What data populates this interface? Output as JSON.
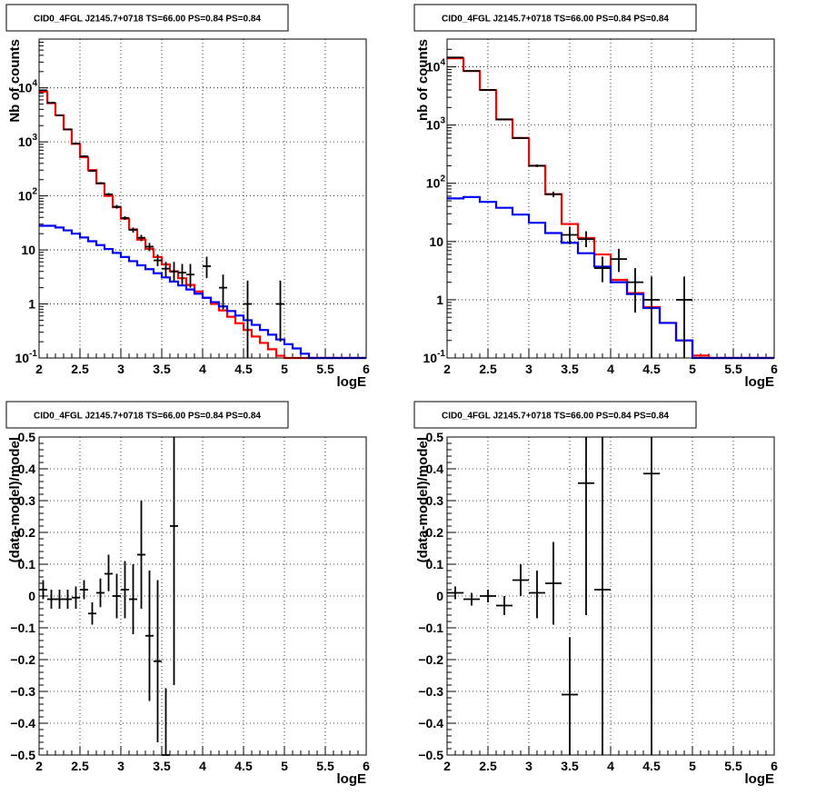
{
  "colors": {
    "model_total": "#ff0000",
    "model_bkg": "#0000ff",
    "data": "#000000"
  },
  "chart_data": [
    {
      "id": "top-left",
      "type": "line",
      "title": "CID0_4FGL J2145.7+0718 TS=66.00 PS=0.84 PS=0.84",
      "xlabel": "logE",
      "ylabel": "Nb of counts",
      "xlim": [
        2,
        6
      ],
      "ylim": [
        0.1,
        80000
      ],
      "yscale": "log",
      "grid": true,
      "xticks": [
        "2",
        "2.5",
        "3",
        "3.5",
        "4",
        "4.5",
        "5",
        "5.5",
        "6"
      ],
      "yticks": [
        {
          "v": 0.1,
          "label": "10",
          "sup": "-1"
        },
        {
          "v": 1,
          "label": "1",
          "sup": ""
        },
        {
          "v": 10,
          "label": "10",
          "sup": ""
        },
        {
          "v": 100,
          "label": "10",
          "sup": "2"
        },
        {
          "v": 1000,
          "label": "10",
          "sup": "3"
        },
        {
          "v": 10000,
          "label": "10",
          "sup": "4"
        }
      ],
      "hist_edges": [
        2.0,
        2.1,
        2.2,
        2.3,
        2.4,
        2.5,
        2.6,
        2.7,
        2.8,
        2.9,
        3.0,
        3.1,
        3.2,
        3.3,
        3.4,
        3.5,
        3.6,
        3.7,
        3.8,
        3.9,
        4.0,
        4.1,
        4.2,
        4.3,
        4.4,
        4.5,
        4.6,
        4.7,
        4.8,
        4.9,
        5.0,
        5.1,
        5.2,
        5.3,
        5.4,
        5.5,
        5.6,
        5.7,
        5.8,
        5.9,
        6.0
      ],
      "series": [
        {
          "kind": "hist",
          "color": "model_total",
          "values": [
            8500,
            5200,
            3100,
            1700,
            920,
            520,
            300,
            170,
            100,
            62,
            38,
            24,
            15.5,
            10.5,
            7.4,
            5.4,
            4.0,
            3.0,
            2.25,
            1.7,
            1.3,
            1.0,
            0.76,
            0.58,
            0.44,
            0.33,
            0.25,
            0.19,
            0.145,
            0.11,
            0.1,
            0.1,
            0.1,
            0.1,
            0.1,
            0.1,
            0.1,
            0.1,
            0.1,
            0.1
          ]
        },
        {
          "kind": "hist",
          "color": "model_bkg",
          "values": [
            28,
            28,
            26,
            23,
            20,
            17,
            14.5,
            12.3,
            10.4,
            8.8,
            7.4,
            6.2,
            5.2,
            4.4,
            3.7,
            3.1,
            2.6,
            2.2,
            1.85,
            1.55,
            1.3,
            1.08,
            0.9,
            0.74,
            0.61,
            0.5,
            0.41,
            0.33,
            0.27,
            0.22,
            0.18,
            0.15,
            0.12,
            0.1,
            0.1,
            0.1,
            0.1,
            0.1,
            0.1,
            0.1
          ]
        },
        {
          "kind": "points",
          "color": "data",
          "x": [
            2.05,
            2.15,
            2.25,
            2.35,
            2.45,
            2.55,
            2.65,
            2.75,
            2.85,
            2.95,
            3.05,
            3.15,
            3.25,
            3.35,
            3.45,
            3.55,
            3.65,
            3.75,
            3.85,
            4.05,
            4.25,
            4.55,
            4.95
          ],
          "xerr": 0.05,
          "y": [
            9000,
            5300,
            3100,
            1700,
            930,
            540,
            290,
            172,
            107,
            63,
            39,
            23.5,
            16.8,
            11.5,
            6.4,
            4.5,
            4.0,
            3.8,
            3.5,
            5.0,
            2.0,
            1.0,
            1.0
          ],
          "ylo": [
            8900,
            5200,
            3000,
            1650,
            900,
            520,
            280,
            165,
            100,
            58,
            36,
            21,
            14.5,
            9.5,
            5.0,
            3.2,
            2.5,
            2.3,
            2.0,
            3.0,
            0.8,
            0.07,
            0.2
          ],
          "yhi": [
            9100,
            5400,
            3200,
            1750,
            960,
            560,
            300,
            180,
            113,
            68,
            42,
            26,
            19,
            13.5,
            8.2,
            6.0,
            6.0,
            5.5,
            5.5,
            7.5,
            3.5,
            2.7,
            2.7
          ]
        }
      ]
    },
    {
      "id": "top-right",
      "type": "line",
      "title": "CID0_4FGL J2145.7+0718 TS=66.00 PS=0.84 PS=0.84",
      "xlabel": "logE",
      "ylabel": "nb of counts",
      "xlim": [
        2,
        6
      ],
      "ylim": [
        0.1,
        30000
      ],
      "yscale": "log",
      "grid": true,
      "xticks": [
        "2",
        "2.5",
        "3",
        "3.5",
        "4",
        "4.5",
        "5",
        "5.5",
        "6"
      ],
      "yticks": [
        {
          "v": 0.1,
          "label": "10",
          "sup": "-1"
        },
        {
          "v": 1,
          "label": "1",
          "sup": ""
        },
        {
          "v": 10,
          "label": "10",
          "sup": ""
        },
        {
          "v": 100,
          "label": "10",
          "sup": "2"
        },
        {
          "v": 1000,
          "label": "10",
          "sup": "3"
        },
        {
          "v": 10000,
          "label": "10",
          "sup": "4"
        }
      ],
      "hist_edges": [
        2.0,
        2.2,
        2.4,
        2.6,
        2.8,
        3.0,
        3.2,
        3.4,
        3.6,
        3.8,
        4.0,
        4.2,
        4.4,
        4.6,
        4.8,
        5.0,
        5.2,
        5.4,
        5.6,
        5.8,
        6.0
      ],
      "series": [
        {
          "kind": "hist",
          "color": "model_total",
          "values": [
            14000,
            8500,
            4000,
            1250,
            600,
            200,
            65,
            20,
            11.5,
            6.0,
            2.2,
            1.3,
            0.75,
            0.4,
            0.2,
            0.11,
            0.1,
            0.1,
            0.1,
            0.1
          ]
        },
        {
          "kind": "hist",
          "color": "model_bkg",
          "values": [
            55,
            58,
            48,
            38,
            29,
            21,
            14,
            9.5,
            6.3,
            3.7,
            2.0,
            1.25,
            0.72,
            0.4,
            0.2,
            0.1,
            0.1,
            0.1,
            0.1,
            0.1
          ]
        },
        {
          "kind": "points",
          "color": "data",
          "x": [
            2.1,
            2.3,
            2.5,
            2.7,
            2.9,
            3.1,
            3.3,
            3.5,
            3.7,
            3.9,
            4.1,
            4.3,
            4.5,
            4.9
          ],
          "xerr": 0.1,
          "y": [
            14500,
            8500,
            4000,
            1250,
            600,
            200,
            65,
            13,
            11,
            3.5,
            5.0,
            2.0,
            1.0,
            1.0
          ],
          "ylo": [
            14300,
            8400,
            3900,
            1220,
            580,
            190,
            58,
            9,
            8,
            2.0,
            3.0,
            0.6,
            0.1,
            0.1
          ],
          "yhi": [
            14700,
            8600,
            4100,
            1280,
            620,
            210,
            72,
            18,
            15,
            5.5,
            7.5,
            3.5,
            2.5,
            2.5
          ]
        }
      ]
    },
    {
      "id": "bottom-left",
      "type": "scatter",
      "title": "CID0_4FGL J2145.7+0718 TS=66.00 PS=0.84 PS=0.84",
      "xlabel": "logE",
      "ylabel": "(data-model)/model",
      "xlim": [
        2,
        6
      ],
      "ylim": [
        -0.5,
        0.5
      ],
      "yscale": "linear",
      "grid": true,
      "xticks": [
        "2",
        "2.5",
        "3",
        "3.5",
        "4",
        "4.5",
        "5",
        "5.5",
        "6"
      ],
      "yticks": [
        {
          "v": -0.5,
          "label": "−0.5",
          "sup": ""
        },
        {
          "v": -0.4,
          "label": "−0.4",
          "sup": ""
        },
        {
          "v": -0.3,
          "label": "−0.3",
          "sup": ""
        },
        {
          "v": -0.2,
          "label": "−0.2",
          "sup": ""
        },
        {
          "v": -0.1,
          "label": "−0.1",
          "sup": ""
        },
        {
          "v": 0,
          "label": "0",
          "sup": ""
        },
        {
          "v": 0.1,
          "label": "0.1",
          "sup": ""
        },
        {
          "v": 0.2,
          "label": "0.2",
          "sup": ""
        },
        {
          "v": 0.3,
          "label": "0.3",
          "sup": ""
        },
        {
          "v": 0.4,
          "label": "0.4",
          "sup": ""
        },
        {
          "v": 0.5,
          "label": "0.5",
          "sup": ""
        }
      ],
      "series": [
        {
          "kind": "points",
          "color": "data",
          "x": [
            2.05,
            2.15,
            2.25,
            2.35,
            2.45,
            2.55,
            2.65,
            2.75,
            2.85,
            2.95,
            3.05,
            3.15,
            3.25,
            3.35,
            3.45,
            3.55,
            3.65
          ],
          "xerr": 0.05,
          "y": [
            0.02,
            -0.01,
            -0.01,
            -0.01,
            -0.005,
            0.02,
            -0.055,
            0.01,
            0.07,
            0.0,
            0.02,
            -0.01,
            0.13,
            -0.125,
            -0.205,
            -0.5,
            0.22
          ],
          "ylo": [
            -0.01,
            -0.04,
            -0.04,
            -0.04,
            -0.04,
            -0.01,
            -0.09,
            -0.035,
            0.015,
            -0.07,
            -0.07,
            -0.12,
            -0.04,
            -0.33,
            -0.46,
            -0.5,
            -0.28
          ],
          "yhi": [
            0.05,
            0.02,
            0.02,
            0.02,
            0.03,
            0.05,
            -0.02,
            0.055,
            0.13,
            0.07,
            0.11,
            0.1,
            0.3,
            0.08,
            0.05,
            -0.29,
            0.5
          ]
        }
      ]
    },
    {
      "id": "bottom-right",
      "type": "scatter",
      "title": "CID0_4FGL J2145.7+0718 TS=66.00 PS=0.84 PS=0.84",
      "xlabel": "logE",
      "ylabel": "(data-model)/model",
      "xlim": [
        2,
        6
      ],
      "ylim": [
        -0.5,
        0.5
      ],
      "yscale": "linear",
      "grid": true,
      "xticks": [
        "2",
        "2.5",
        "3",
        "3.5",
        "4",
        "4.5",
        "5",
        "5.5",
        "6"
      ],
      "yticks": [
        {
          "v": -0.5,
          "label": "−0.5",
          "sup": ""
        },
        {
          "v": -0.4,
          "label": "−0.4",
          "sup": ""
        },
        {
          "v": -0.3,
          "label": "−0.3",
          "sup": ""
        },
        {
          "v": -0.2,
          "label": "−0.2",
          "sup": ""
        },
        {
          "v": -0.1,
          "label": "−0.1",
          "sup": ""
        },
        {
          "v": 0,
          "label": "0",
          "sup": ""
        },
        {
          "v": 0.1,
          "label": "0.1",
          "sup": ""
        },
        {
          "v": 0.2,
          "label": "0.2",
          "sup": ""
        },
        {
          "v": 0.3,
          "label": "0.3",
          "sup": ""
        },
        {
          "v": 0.4,
          "label": "0.4",
          "sup": ""
        },
        {
          "v": 0.5,
          "label": "0.5",
          "sup": ""
        }
      ],
      "series": [
        {
          "kind": "points",
          "color": "data",
          "x": [
            2.1,
            2.3,
            2.5,
            2.7,
            2.9,
            3.1,
            3.3,
            3.5,
            3.7,
            3.9,
            4.5
          ],
          "xerr": 0.1,
          "y": [
            0.01,
            -0.01,
            0.0,
            -0.03,
            0.05,
            0.01,
            0.04,
            -0.31,
            0.355,
            0.02,
            0.385
          ],
          "ylo": [
            -0.01,
            -0.03,
            -0.02,
            -0.06,
            0.0,
            -0.07,
            -0.09,
            -0.5,
            -0.06,
            -0.5,
            -0.5
          ],
          "yhi": [
            0.03,
            0.01,
            0.02,
            0.0,
            0.1,
            0.08,
            0.17,
            -0.13,
            0.5,
            0.5,
            0.5
          ]
        }
      ]
    }
  ]
}
